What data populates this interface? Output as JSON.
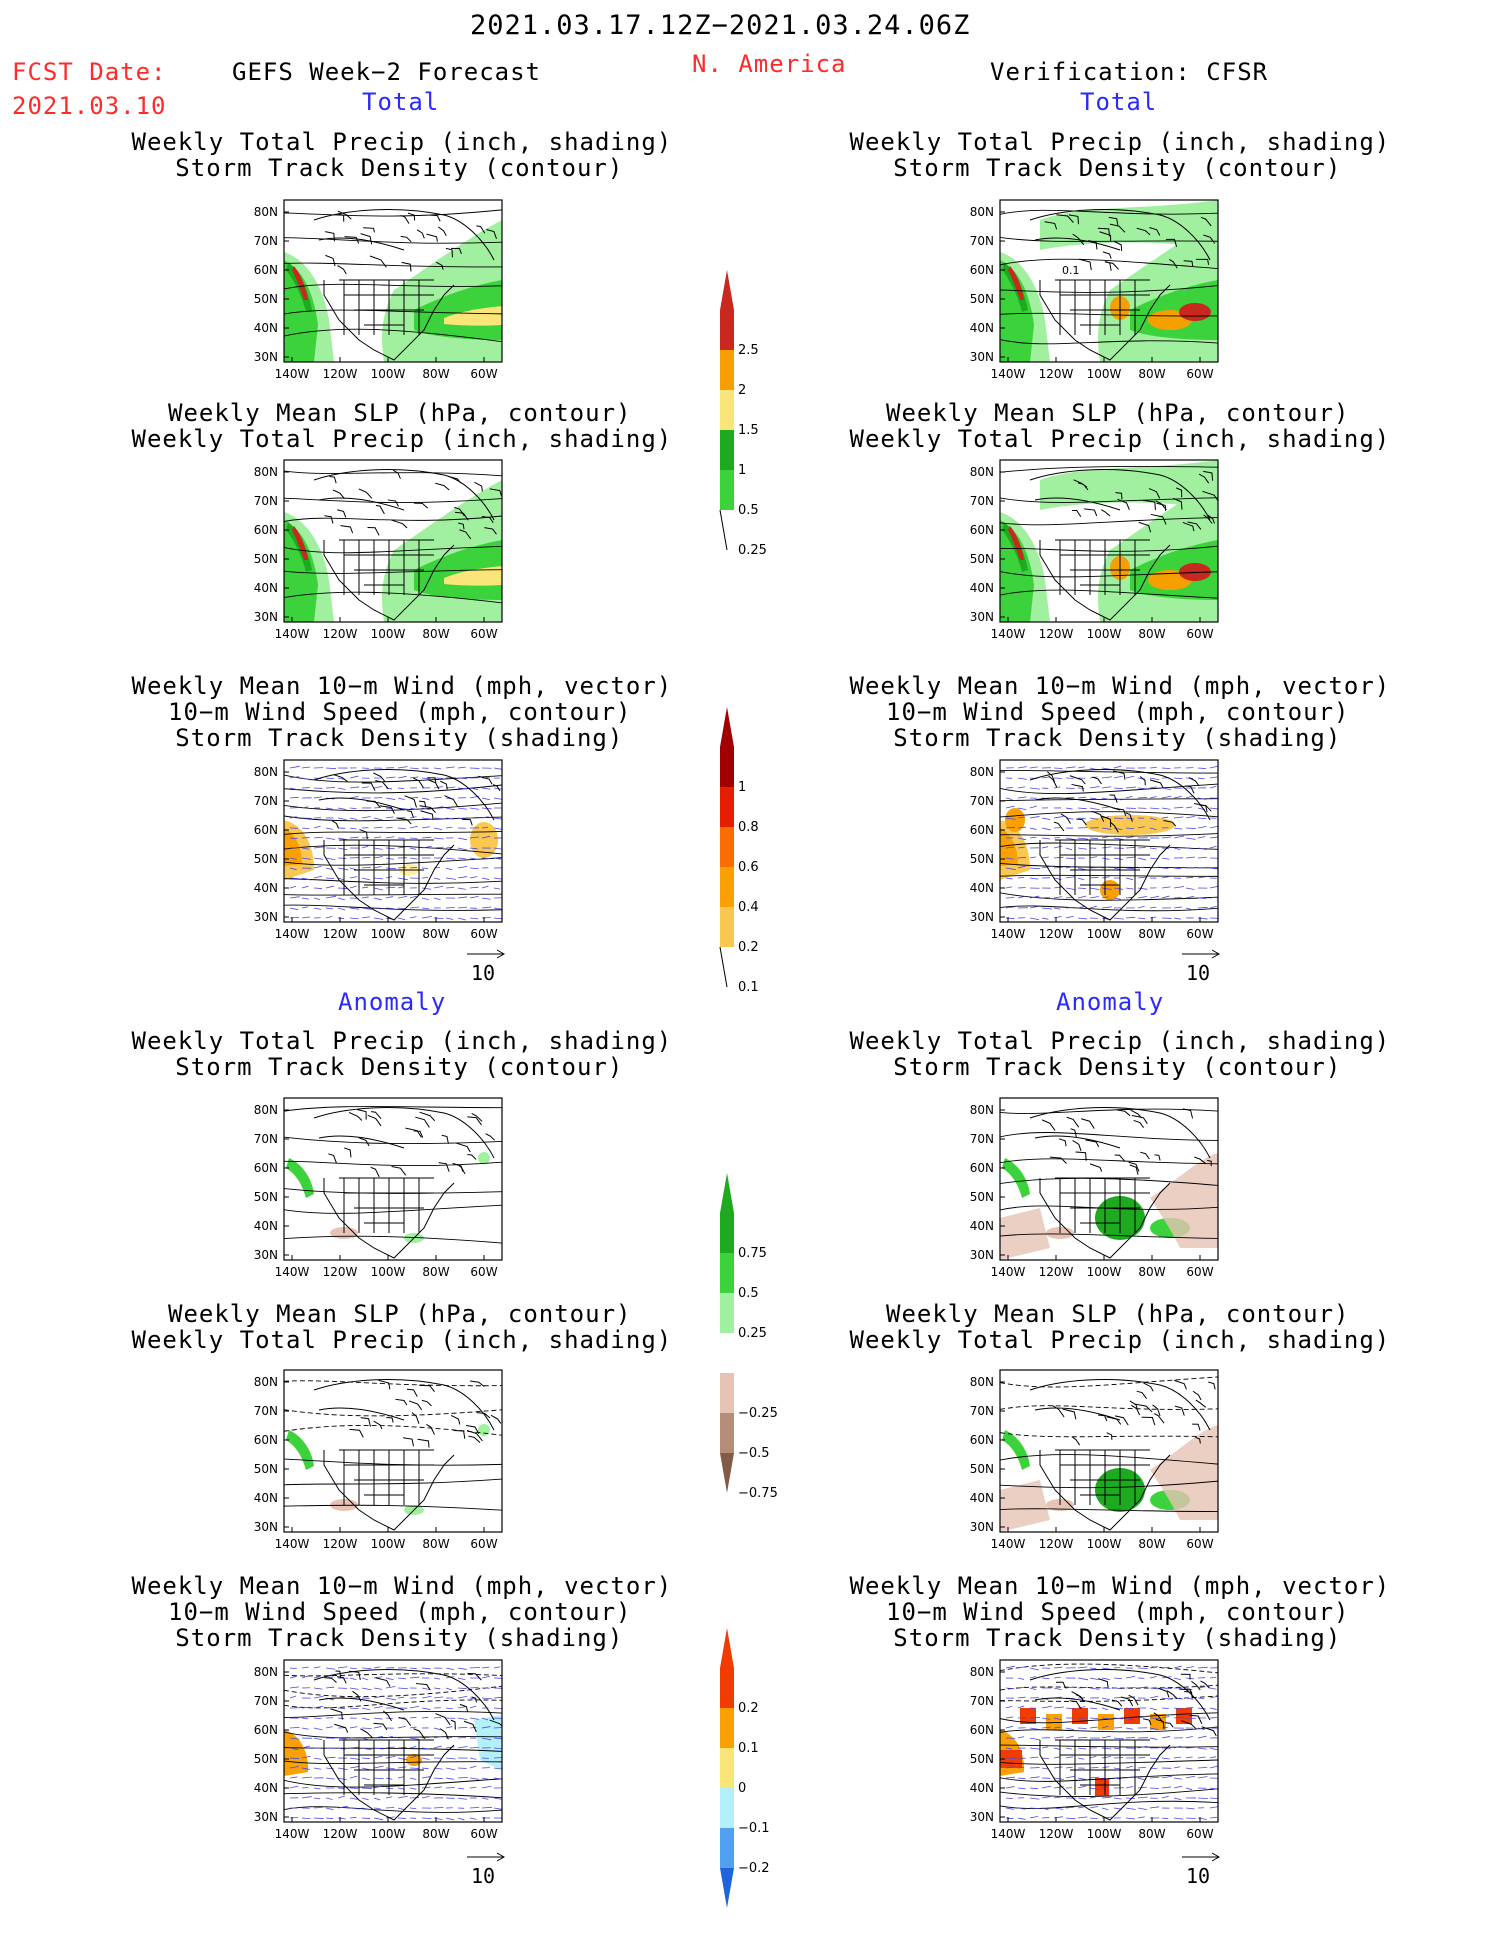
{
  "header": {
    "period": "2021.03.17.12Z−2021.03.24.06Z",
    "fcst_label": "FCST Date:",
    "fcst_date": "2021.03.10",
    "model": "GEFS Week−2 Forecast",
    "region": "N. America",
    "verification": "Verification: CFSR"
  },
  "sections": {
    "total": "Total",
    "anomaly": "Anomaly"
  },
  "titles": {
    "precip_track": [
      "Weekly Total Precip (inch, shading)",
      "Storm Track Density (contour)"
    ],
    "slp_precip": [
      "Weekly Mean SLP (hPa, contour)",
      "Weekly Total Precip (inch, shading)"
    ],
    "wind_track": [
      "Weekly Mean 10−m Wind (mph, vector)",
      "10−m Wind Speed (mph, contour)",
      "Storm Track Density (shading)"
    ]
  },
  "axes": {
    "lat_labels": [
      "80N",
      "70N",
      "60N",
      "50N",
      "40N",
      "30N"
    ],
    "lon_labels": [
      "140W",
      "120W",
      "100W",
      "80W",
      "60W"
    ]
  },
  "vector_ref": "10",
  "map_annotations": {
    "right_top_contour_label": "0.1"
  },
  "colorbars": {
    "precip_total": {
      "labels": [
        "2.5",
        "2",
        "1.5",
        "1",
        "0.5",
        "0.25"
      ],
      "colors": [
        "#c8281e",
        "#f5a000",
        "#fae678",
        "#1eaa1e",
        "#3cd23c",
        "#a0f0a0"
      ]
    },
    "track_total": {
      "labels": [
        "1",
        "0.8",
        "0.6",
        "0.4",
        "0.2",
        "0.1"
      ],
      "colors": [
        "#a00000",
        "#e61e00",
        "#fa6e00",
        "#faa000",
        "#fac850",
        "#fff0a0"
      ]
    },
    "precip_anom": {
      "labels": [
        "0.75",
        "0.5",
        "0.25",
        "−0.25",
        "−0.5",
        "−0.75"
      ],
      "colors": [
        "#1eaa1e",
        "#3cd23c",
        "#a0f0a0",
        "#ffffff",
        "#e6c3b4",
        "#b48c78",
        "#825a46"
      ]
    },
    "track_anom": {
      "labels": [
        "0.2",
        "0.1",
        "0",
        "−0.1",
        "−0.2"
      ],
      "colors": [
        "#f03c00",
        "#faa000",
        "#fae678",
        "#b4f0fa",
        "#50a0f0",
        "#1e64dc"
      ]
    }
  },
  "map_colors": {
    "land_line": "#000000",
    "wind_vector": "#4646e6",
    "wind_contour": "#000000"
  }
}
